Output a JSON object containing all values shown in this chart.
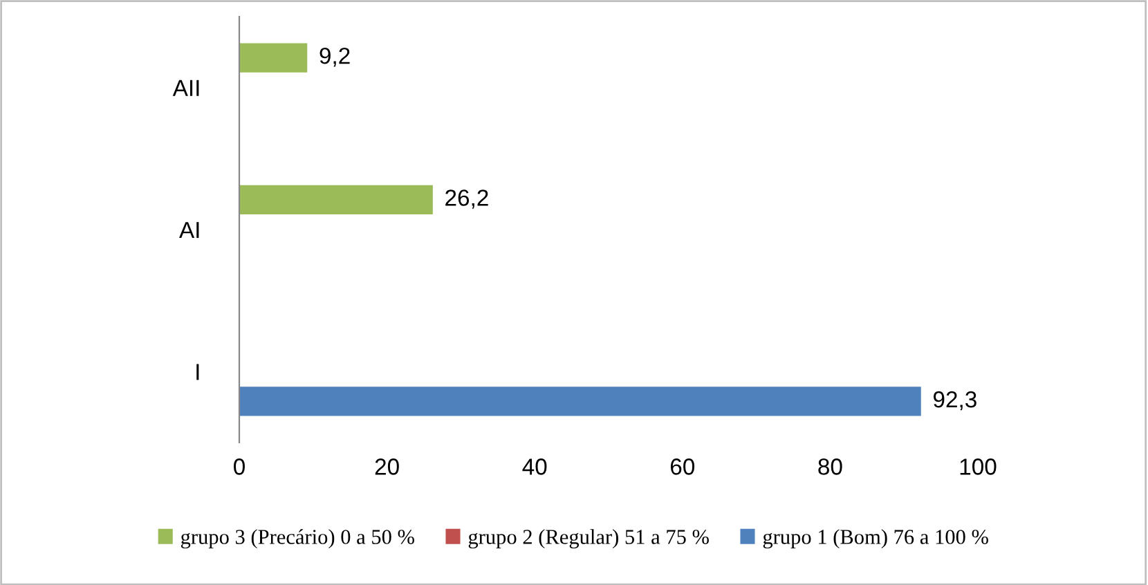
{
  "chart_data": {
    "type": "bar",
    "orientation": "horizontal",
    "categories": [
      "AII",
      "AI",
      "I"
    ],
    "series": [
      {
        "name": "grupo 3 (Precário) 0 a 50 %",
        "color": "#9bbb59",
        "values": [
          9.2,
          26.2,
          null
        ],
        "value_labels": [
          "9,2",
          "26,2",
          null
        ]
      },
      {
        "name": "grupo 2 (Regular) 51 a 75 %",
        "color": "#c0504d",
        "values": [
          null,
          null,
          null
        ],
        "value_labels": [
          null,
          null,
          null
        ]
      },
      {
        "name": "grupo 1 (Bom) 76 a 100 %",
        "color": "#4f81bd",
        "values": [
          null,
          null,
          92.3
        ],
        "value_labels": [
          null,
          null,
          "92,3"
        ]
      }
    ],
    "xlim": [
      0,
      100
    ],
    "xticks": [
      0,
      20,
      40,
      60,
      80,
      100
    ],
    "grid": false,
    "legend": "bottom"
  }
}
